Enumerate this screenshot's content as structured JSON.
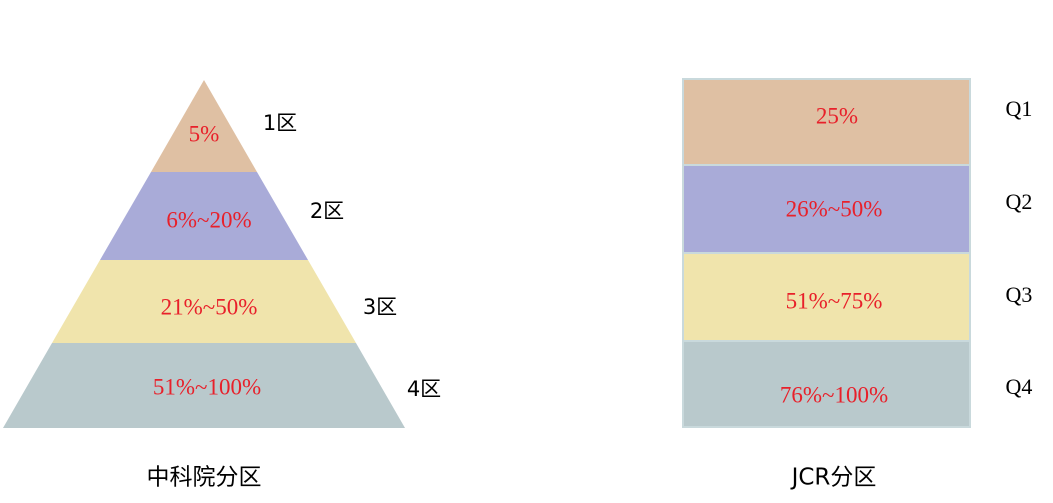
{
  "cas": {
    "title": "中科院分区",
    "tiers": [
      {
        "label": "1区",
        "range": "5%"
      },
      {
        "label": "2区",
        "range": "6%~20%"
      },
      {
        "label": "3区",
        "range": "21%~50%"
      },
      {
        "label": "4区",
        "range": "51%~100%"
      }
    ]
  },
  "jcr": {
    "title": "JCR分区",
    "quartiles": [
      {
        "label": "Q1",
        "range": "25%"
      },
      {
        "label": "Q2",
        "range": "26%~50%"
      },
      {
        "label": "Q3",
        "range": "51%~75%"
      },
      {
        "label": "Q4",
        "range": "76%~100%"
      }
    ]
  }
}
